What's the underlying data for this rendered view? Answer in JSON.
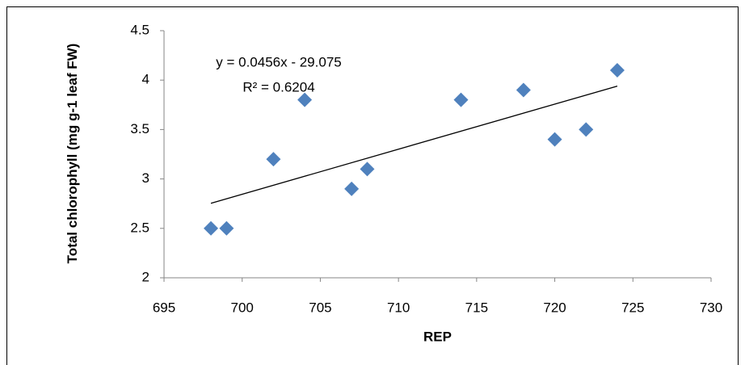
{
  "chart_data": {
    "type": "scatter",
    "x_label": "REP",
    "y_label": "Total chlorophyll (mg g-1 leaf FW)",
    "series": [
      {
        "color": "#4f81bd",
        "x": [
          698,
          699,
          702,
          704,
          707,
          708,
          714,
          718,
          720,
          722,
          724
        ],
        "values": [
          2.5,
          2.5,
          3.2,
          3.8,
          2.9,
          3.1,
          3.8,
          3.9,
          3.4,
          3.5,
          4.1
        ]
      }
    ],
    "trendline": {
      "equation": "y = 0.0456x - 29.075",
      "r2": "R² = 0.6204",
      "slope": 0.0456,
      "intercept": -29.075,
      "color": "#000000"
    },
    "xlim": [
      695,
      730
    ],
    "xticks": [
      695,
      700,
      705,
      710,
      715,
      720,
      725,
      730
    ],
    "ylim": [
      2,
      4.5
    ],
    "yticks": [
      2,
      2.5,
      3,
      3.5,
      4,
      4.5
    ],
    "grid": false
  }
}
